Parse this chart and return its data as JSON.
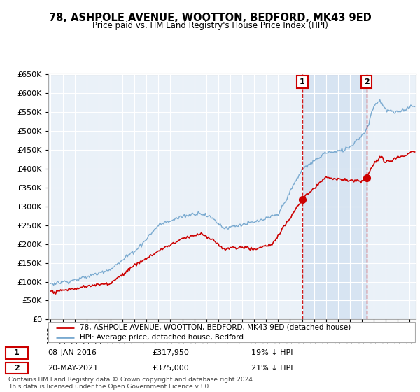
{
  "title": "78, ASHPOLE AVENUE, WOOTTON, BEDFORD, MK43 9ED",
  "subtitle": "Price paid vs. HM Land Registry's House Price Index (HPI)",
  "legend_line1": "78, ASHPOLE AVENUE, WOOTTON, BEDFORD, MK43 9ED (detached house)",
  "legend_line2": "HPI: Average price, detached house, Bedford",
  "sale1_date": "08-JAN-2016",
  "sale1_price": 317950,
  "sale1_label": "£317,950",
  "sale1_pct": "19% ↓ HPI",
  "sale2_date": "20-MAY-2021",
  "sale2_price": 375000,
  "sale2_label": "£375,000",
  "sale2_pct": "21% ↓ HPI",
  "footer": "Contains HM Land Registry data © Crown copyright and database right 2024.\nThis data is licensed under the Open Government Licence v3.0.",
  "hpi_color": "#7aaad0",
  "price_color": "#cc0000",
  "sale1_x": 2016.03,
  "sale2_x": 2021.38,
  "ylim": [
    0,
    650000
  ],
  "xlim": [
    1994.8,
    2025.5
  ],
  "background_color": "#dce8f5",
  "chart_bg": "#eaf1f8",
  "grid_color": "#ffffff",
  "shade_color": "#c5d9ee"
}
